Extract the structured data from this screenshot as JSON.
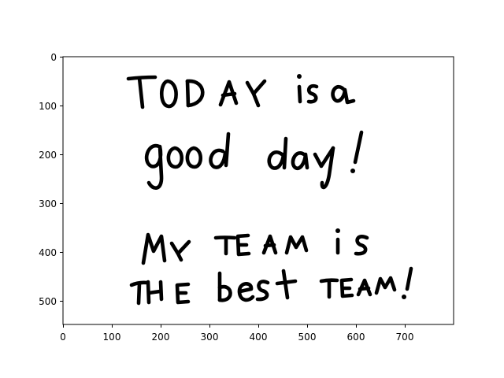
{
  "axes": {
    "x_ticks": [
      "0",
      "100",
      "200",
      "300",
      "400",
      "500",
      "600",
      "700"
    ],
    "y_ticks": [
      "0",
      "100",
      "200",
      "300",
      "400",
      "500"
    ],
    "xlim": [
      0,
      800
    ],
    "ylim": [
      550,
      0
    ]
  },
  "handwriting": {
    "lines": [
      "TODAY is a",
      "good day!",
      "MY TEAM is",
      "THE best TEAM!"
    ],
    "ink_color": "#000000",
    "background_color": "#ffffff"
  }
}
